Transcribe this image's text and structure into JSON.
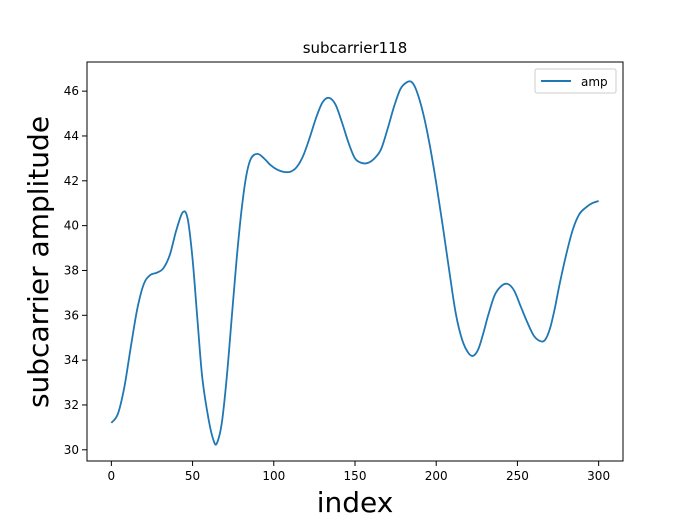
{
  "chart_data": {
    "type": "line",
    "title": "subcarrier118",
    "xlabel": "index",
    "ylabel": "subcarrier amplitude",
    "xlim": [
      -15,
      315
    ],
    "ylim": [
      29.5,
      47.3
    ],
    "xticks": [
      0,
      50,
      100,
      150,
      200,
      250,
      300
    ],
    "yticks": [
      30,
      32,
      34,
      36,
      38,
      40,
      42,
      44,
      46
    ],
    "grid": false,
    "legend_placement": "top-right",
    "series": [
      {
        "name": "amp",
        "color": "#1f77b4",
        "points": [
          [
            0,
            31.2
          ],
          [
            4,
            31.6
          ],
          [
            8,
            32.8
          ],
          [
            12,
            34.6
          ],
          [
            16,
            36.3
          ],
          [
            20,
            37.4
          ],
          [
            24,
            37.8
          ],
          [
            28,
            37.9
          ],
          [
            32,
            38.1
          ],
          [
            36,
            38.7
          ],
          [
            40,
            39.8
          ],
          [
            44,
            40.6
          ],
          [
            47,
            40.3
          ],
          [
            50,
            38.5
          ],
          [
            53,
            35.8
          ],
          [
            56,
            33.2
          ],
          [
            60,
            31.3
          ],
          [
            63,
            30.4
          ],
          [
            65,
            30.3
          ],
          [
            68,
            31.2
          ],
          [
            71,
            33.2
          ],
          [
            74,
            35.8
          ],
          [
            77,
            38.4
          ],
          [
            80,
            40.6
          ],
          [
            83,
            42.2
          ],
          [
            86,
            43.0
          ],
          [
            90,
            43.2
          ],
          [
            94,
            43.0
          ],
          [
            98,
            42.7
          ],
          [
            102,
            42.5
          ],
          [
            106,
            42.4
          ],
          [
            110,
            42.4
          ],
          [
            114,
            42.6
          ],
          [
            118,
            43.1
          ],
          [
            122,
            43.9
          ],
          [
            126,
            44.8
          ],
          [
            130,
            45.5
          ],
          [
            134,
            45.7
          ],
          [
            138,
            45.4
          ],
          [
            142,
            44.6
          ],
          [
            146,
            43.7
          ],
          [
            150,
            43.0
          ],
          [
            154,
            42.8
          ],
          [
            158,
            42.8
          ],
          [
            162,
            43.0
          ],
          [
            166,
            43.4
          ],
          [
            170,
            44.3
          ],
          [
            174,
            45.3
          ],
          [
            178,
            46.1
          ],
          [
            182,
            46.4
          ],
          [
            185,
            46.4
          ],
          [
            188,
            46.0
          ],
          [
            192,
            45.0
          ],
          [
            196,
            43.6
          ],
          [
            200,
            41.9
          ],
          [
            204,
            40.0
          ],
          [
            208,
            38.0
          ],
          [
            212,
            36.1
          ],
          [
            216,
            34.9
          ],
          [
            220,
            34.3
          ],
          [
            223,
            34.2
          ],
          [
            226,
            34.5
          ],
          [
            229,
            35.2
          ],
          [
            232,
            36.0
          ],
          [
            236,
            36.9
          ],
          [
            240,
            37.3
          ],
          [
            244,
            37.4
          ],
          [
            248,
            37.1
          ],
          [
            252,
            36.4
          ],
          [
            256,
            35.7
          ],
          [
            260,
            35.1
          ],
          [
            264,
            34.85
          ],
          [
            267,
            34.9
          ],
          [
            270,
            35.4
          ],
          [
            273,
            36.3
          ],
          [
            276,
            37.4
          ],
          [
            280,
            38.7
          ],
          [
            284,
            39.8
          ],
          [
            288,
            40.5
          ],
          [
            292,
            40.8
          ],
          [
            296,
            41.0
          ],
          [
            300,
            41.1
          ]
        ]
      }
    ]
  }
}
